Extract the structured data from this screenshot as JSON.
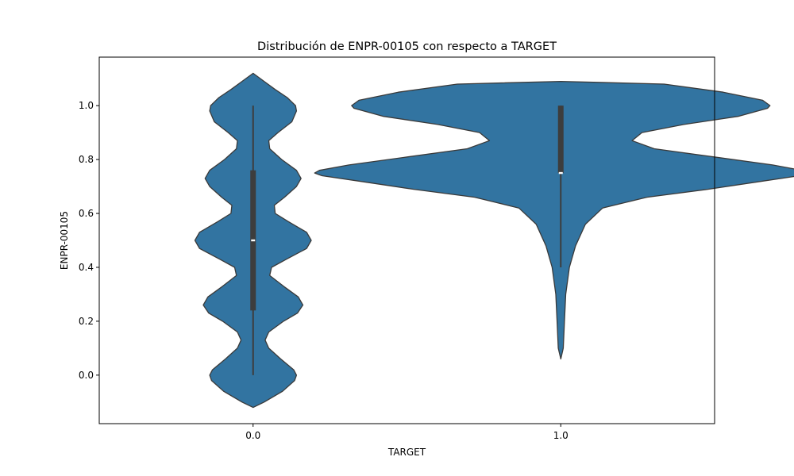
{
  "chart_data": {
    "type": "violin",
    "title": "Distribución de ENPR-00105 con respecto a TARGET",
    "xlabel": "TARGET",
    "ylabel": "ENPR-00105",
    "categories": [
      "0.0",
      "1.0"
    ],
    "yticks": [
      0.0,
      0.2,
      0.4,
      0.6,
      0.8,
      1.0
    ],
    "ytick_labels": [
      "0.0",
      "0.2",
      "0.4",
      "0.6",
      "0.8",
      "1.0"
    ],
    "ylim": [
      -0.18,
      1.18
    ],
    "grid": false,
    "color": "#3274a1",
    "edge_color": "#3a3a3a",
    "violins": [
      {
        "category": "0.0",
        "box": {
          "q1": 0.24,
          "median": 0.5,
          "q3": 0.76,
          "whisker_low": 0.0,
          "whisker_high": 1.0
        },
        "density_max_halfwidth_frac": 0.15,
        "profile": [
          [
            -0.12,
            0.0
          ],
          [
            -0.1,
            0.12
          ],
          [
            -0.06,
            0.32
          ],
          [
            -0.02,
            0.45
          ],
          [
            0.0,
            0.47
          ],
          [
            0.02,
            0.44
          ],
          [
            0.06,
            0.3
          ],
          [
            0.1,
            0.17
          ],
          [
            0.13,
            0.13
          ],
          [
            0.16,
            0.17
          ],
          [
            0.2,
            0.33
          ],
          [
            0.23,
            0.48
          ],
          [
            0.26,
            0.54
          ],
          [
            0.29,
            0.49
          ],
          [
            0.33,
            0.33
          ],
          [
            0.37,
            0.18
          ],
          [
            0.4,
            0.2
          ],
          [
            0.43,
            0.36
          ],
          [
            0.47,
            0.58
          ],
          [
            0.5,
            0.63
          ],
          [
            0.53,
            0.58
          ],
          [
            0.57,
            0.38
          ],
          [
            0.6,
            0.24
          ],
          [
            0.63,
            0.23
          ],
          [
            0.66,
            0.34
          ],
          [
            0.7,
            0.47
          ],
          [
            0.73,
            0.52
          ],
          [
            0.76,
            0.47
          ],
          [
            0.8,
            0.31
          ],
          [
            0.84,
            0.18
          ],
          [
            0.87,
            0.17
          ],
          [
            0.9,
            0.27
          ],
          [
            0.94,
            0.42
          ],
          [
            0.98,
            0.47
          ],
          [
            1.0,
            0.46
          ],
          [
            1.03,
            0.37
          ],
          [
            1.06,
            0.24
          ],
          [
            1.09,
            0.12
          ],
          [
            1.12,
            0.0
          ]
        ]
      },
      {
        "category": "1.0",
        "box": {
          "q1": 0.75,
          "median": 0.75,
          "q3": 1.0,
          "whisker_low": 0.4,
          "whisker_high": 1.0
        },
        "density_max_halfwidth_frac": 0.4,
        "profile": [
          [
            0.06,
            0.0
          ],
          [
            0.1,
            0.01
          ],
          [
            0.2,
            0.015
          ],
          [
            0.3,
            0.02
          ],
          [
            0.4,
            0.035
          ],
          [
            0.48,
            0.06
          ],
          [
            0.56,
            0.1
          ],
          [
            0.62,
            0.17
          ],
          [
            0.66,
            0.35
          ],
          [
            0.69,
            0.6
          ],
          [
            0.72,
            0.82
          ],
          [
            0.74,
            0.97
          ],
          [
            0.75,
            1.0
          ],
          [
            0.76,
            0.98
          ],
          [
            0.78,
            0.86
          ],
          [
            0.81,
            0.62
          ],
          [
            0.84,
            0.38
          ],
          [
            0.87,
            0.29
          ],
          [
            0.9,
            0.33
          ],
          [
            0.93,
            0.5
          ],
          [
            0.96,
            0.72
          ],
          [
            0.99,
            0.84
          ],
          [
            1.0,
            0.85
          ],
          [
            1.02,
            0.82
          ],
          [
            1.05,
            0.66
          ],
          [
            1.08,
            0.42
          ],
          [
            1.09,
            0.0
          ]
        ]
      }
    ]
  }
}
